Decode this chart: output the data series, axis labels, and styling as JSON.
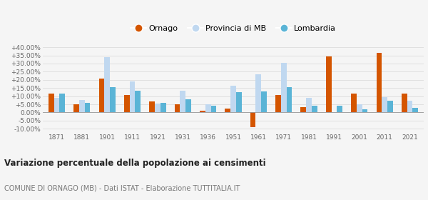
{
  "years": [
    1871,
    1881,
    1901,
    1911,
    1921,
    1931,
    1936,
    1951,
    1961,
    1971,
    1981,
    1991,
    2001,
    2011,
    2021
  ],
  "ornago": [
    11.5,
    4.8,
    21.0,
    10.8,
    6.7,
    5.0,
    1.2,
    2.5,
    -9.0,
    10.5,
    3.2,
    34.2,
    11.5,
    36.5,
    11.5
  ],
  "provincia": [
    9.0,
    7.5,
    34.0,
    19.0,
    5.5,
    13.5,
    4.8,
    16.5,
    23.5,
    30.5,
    9.0,
    -0.3,
    5.0,
    9.5,
    7.0
  ],
  "lombardia": [
    11.5,
    5.8,
    15.5,
    13.2,
    6.0,
    8.0,
    4.2,
    12.5,
    13.0,
    15.5,
    4.0,
    4.2,
    2.0,
    7.2,
    2.8
  ],
  "color_ornago": "#d45500",
  "color_provincia": "#c0d8f0",
  "color_lombardia": "#5ab4d6",
  "title": "Variazione percentuale della popolazione ai censimenti",
  "subtitle": "COMUNE DI ORNAGO (MB) - Dati ISTAT - Elaborazione TUTTITALIA.IT",
  "ylim": [
    -12,
    42
  ],
  "yticks": [
    -10,
    -5,
    0,
    5,
    10,
    15,
    20,
    25,
    30,
    35,
    40
  ],
  "ytick_labels": [
    "-10.00%",
    "-5.00%",
    "0.00%",
    "+5.00%",
    "+10.00%",
    "+15.00%",
    "+20.00%",
    "+25.00%",
    "+30.00%",
    "+35.00%",
    "+40.00%"
  ],
  "legend_labels": [
    "Ornago",
    "Provincia di MB",
    "Lombardia"
  ],
  "background_color": "#f5f5f5",
  "grid_color": "#d8d8d8"
}
